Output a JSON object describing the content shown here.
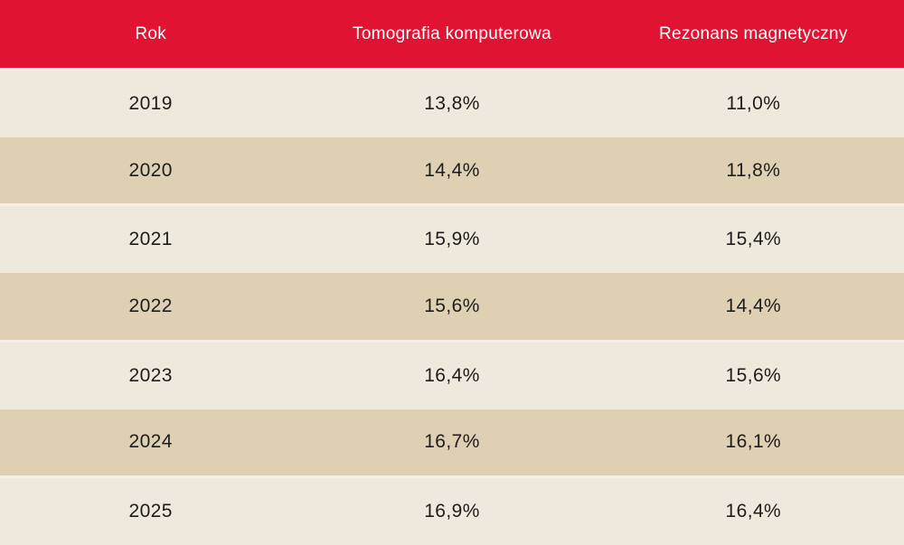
{
  "table": {
    "columns": [
      "Rok",
      "Tomografia komputerowa",
      "Rezonans magnetyczny"
    ],
    "rows": [
      [
        "2019",
        "13,8%",
        "11,0%"
      ],
      [
        "2020",
        "14,4%",
        "11,8%"
      ],
      [
        "2021",
        "15,9%",
        "15,4%"
      ],
      [
        "2022",
        "15,6%",
        "14,4%"
      ],
      [
        "2023",
        "16,4%",
        "15,6%"
      ],
      [
        "2024",
        "16,7%",
        "16,1%"
      ],
      [
        "2025",
        "16,9%",
        "16,4%"
      ]
    ]
  },
  "colors": {
    "header_bg": "#e01332",
    "header_text": "#ffffff",
    "row_light": "#efe8dd",
    "row_dark": "#dfd0b4",
    "row_separator": "#f6f0e7",
    "cell_text": "#1d1d1b"
  },
  "chart_data": {
    "type": "table",
    "title": "",
    "columns": [
      "Rok",
      "Tomografia komputerowa",
      "Rezonans magnetyczny"
    ],
    "categories": [
      "2019",
      "2020",
      "2021",
      "2022",
      "2023",
      "2024",
      "2025"
    ],
    "series": [
      {
        "name": "Tomografia komputerowa",
        "unit": "%",
        "values": [
          13.8,
          14.4,
          15.9,
          15.6,
          16.4,
          16.7,
          16.9
        ]
      },
      {
        "name": "Rezonans magnetyczny",
        "unit": "%",
        "values": [
          11.0,
          11.8,
          15.4,
          14.4,
          15.6,
          16.1,
          16.4
        ]
      }
    ],
    "value_format": "comma-decimal percent",
    "legend_position": "header-row",
    "grid": false
  }
}
